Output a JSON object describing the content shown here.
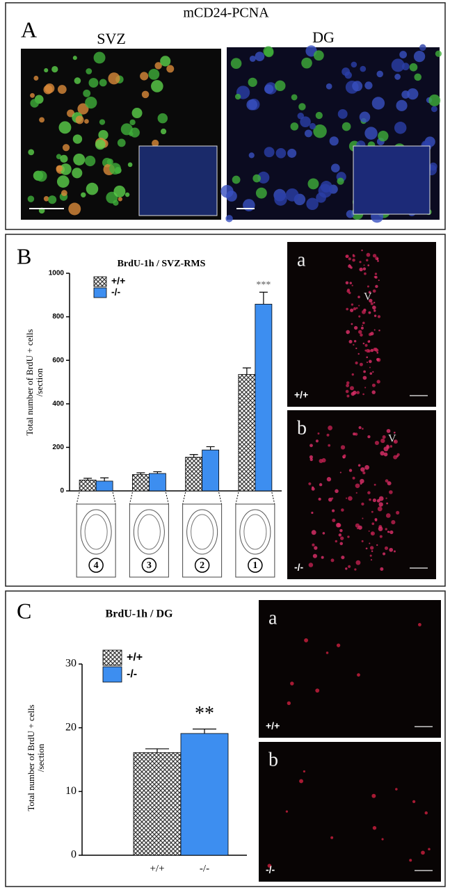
{
  "panels": {
    "A": {
      "label": "A",
      "title": "mCD24-PCNA",
      "images": [
        "SVZ",
        "DG"
      ]
    },
    "B": {
      "label": "B",
      "images": [
        {
          "label": "a",
          "genotype": "+/+",
          "marker": "V"
        },
        {
          "label": "b",
          "genotype": "-/-",
          "marker": "V"
        }
      ]
    },
    "C": {
      "label": "C",
      "images": [
        {
          "label": "a",
          "genotype": "+/+"
        },
        {
          "label": "b",
          "genotype": "-/-"
        }
      ]
    }
  },
  "chart_data": [
    {
      "type": "bar",
      "title": "BrdU-1h / SVZ-RMS",
      "y_label": [
        "Total number of BrdU + cells",
        "/section"
      ],
      "categories": [
        "4",
        "3",
        "2",
        "1"
      ],
      "series": [
        {
          "name": "+/+",
          "color": "crosshatch",
          "values": [
            50,
            75,
            155,
            535
          ],
          "errors": [
            8,
            8,
            12,
            30
          ]
        },
        {
          "name": "-/-",
          "color": "#3d8ef0",
          "values": [
            45,
            80,
            188,
            858
          ],
          "errors": [
            15,
            8,
            15,
            55
          ]
        }
      ],
      "significance": [
        null,
        null,
        null,
        "***"
      ],
      "ylim": [
        0,
        1000
      ],
      "yticks": [
        0,
        200,
        400,
        600,
        800,
        1000
      ]
    },
    {
      "type": "bar",
      "title": "BrdU-1h / DG",
      "y_label": [
        "Total number of BrdU + cells",
        "/section"
      ],
      "categories": [
        "+/+",
        "-/-"
      ],
      "values": [
        16.1,
        19.1
      ],
      "errors": [
        0.6,
        0.7
      ],
      "colors": [
        "crosshatch",
        "#3d8ef0"
      ],
      "legend": [
        "+/+",
        "-/-"
      ],
      "significance": [
        null,
        "**"
      ],
      "ylim": [
        0,
        30
      ],
      "yticks": [
        0,
        10,
        20,
        30
      ]
    }
  ]
}
